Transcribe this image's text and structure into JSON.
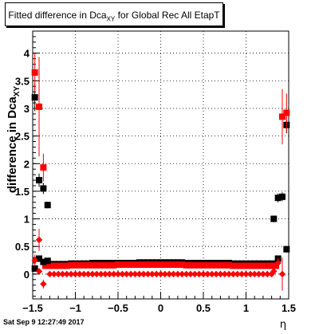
{
  "title": {
    "main": "Fitted difference in Dca",
    "sub": "XY",
    "rest": " for Global Rec All EtapT"
  },
  "ylabel": {
    "main": "difference in Dca",
    "sub": "XY"
  },
  "xlabel": "η",
  "timestamp": "Sat Sep  9 12:27:49 2017",
  "colors": {
    "black_series": "#000000",
    "red_series": "#ff0000",
    "grid": "#000000"
  },
  "chart_data": {
    "type": "scatter",
    "xlim": [
      -1.5,
      1.5
    ],
    "ylim": [
      -0.45,
      4.4
    ],
    "xticks": [
      -1.5,
      -1,
      -0.5,
      0,
      0.5,
      1,
      1.5
    ],
    "xtick_labels": [
      "−1.5",
      "−1",
      "−0.5",
      "0",
      "0.5",
      "1",
      "1.5"
    ],
    "yticks": [
      0,
      0.5,
      1,
      1.5,
      2,
      2.5,
      3,
      3.5,
      4
    ],
    "ytick_labels": [
      "0",
      "0.5",
      "1",
      "1.5",
      "2",
      "2.5",
      "3",
      "3.5",
      "4"
    ],
    "grid": true,
    "series": [
      {
        "color": "#000000",
        "marker": "square",
        "points": [
          {
            "x": -1.475,
            "y": 3.2,
            "err": 0.25
          },
          {
            "x": -1.475,
            "y": 0.1,
            "err": 0.05
          },
          {
            "x": -1.425,
            "y": 1.7,
            "err": 0.12
          },
          {
            "x": -1.425,
            "y": 0.28,
            "err": 0.05
          },
          {
            "x": -1.375,
            "y": 1.55,
            "err": 0.1
          },
          {
            "x": -1.375,
            "y": 0.22,
            "err": 0.04
          },
          {
            "x": -1.325,
            "y": 1.25,
            "err": 0.06
          },
          {
            "x": -1.325,
            "y": 0.24,
            "err": 0.03
          },
          {
            "x": 1.325,
            "y": 1.0,
            "err": 0.06
          },
          {
            "x": 1.375,
            "y": 1.38,
            "err": 0.08
          },
          {
            "x": 1.375,
            "y": 0.28,
            "err": 0.04
          },
          {
            "x": 1.425,
            "y": 1.4,
            "err": 0.08
          },
          {
            "x": 1.475,
            "y": 2.7,
            "err": 0.15
          },
          {
            "x": 1.475,
            "y": 0.45,
            "err": 0.06
          }
        ]
      },
      {
        "color": "#ff0000",
        "marker": "square",
        "points": [
          {
            "x": -1.475,
            "y": 3.65,
            "err": 0.35
          },
          {
            "x": -1.425,
            "y": 3.03,
            "err": 0.9
          },
          {
            "x": -1.375,
            "y": 1.93,
            "err": 0.25
          },
          {
            "x": 1.425,
            "y": 2.85,
            "err": 0.5
          },
          {
            "x": 1.475,
            "y": 2.92,
            "err": 0.35
          }
        ]
      },
      {
        "color": "#ff0000",
        "marker": "diamond",
        "points": [
          {
            "x": -1.475,
            "y": 0.25,
            "err": 0.1
          },
          {
            "x": -1.425,
            "y": 0.62,
            "err": 0.2
          },
          {
            "x": -1.425,
            "y": 0.05,
            "err": 0.05
          },
          {
            "x": -1.375,
            "y": -0.18,
            "err": 0.08
          },
          {
            "x": 1.325,
            "y": 0.05,
            "err": 0.03
          },
          {
            "x": 1.375,
            "y": 0.2,
            "err": 0.1
          },
          {
            "x": 1.425,
            "y": 0.0,
            "err": 0.3
          }
        ]
      }
    ],
    "bands": [
      {
        "color": "#000000",
        "x_from": -1.35,
        "x_to": 1.35,
        "step": 0.05,
        "values": [
          0.18,
          0.19,
          0.2,
          0.2,
          0.21,
          0.21,
          0.2,
          0.2,
          0.19,
          0.19
        ],
        "err": 0.012
      },
      {
        "color": "#ff0000",
        "x_from": -1.35,
        "x_to": 1.35,
        "step": 0.05,
        "values": [
          0.15,
          0.16,
          0.16,
          0.17,
          0.17,
          0.17,
          0.16,
          0.16,
          0.15,
          0.15
        ],
        "err": 0.01
      },
      {
        "color": "#ff0000",
        "x_from": -1.3,
        "x_to": 1.3,
        "step": 0.05,
        "values": [
          0.0
        ],
        "err": 0.0,
        "marker": "diamond"
      }
    ]
  }
}
